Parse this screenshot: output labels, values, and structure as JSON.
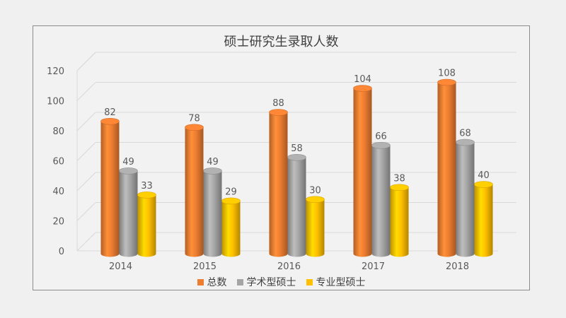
{
  "chart_data": {
    "type": "bar",
    "title": "硕士研究生录取人数",
    "categories": [
      "2014",
      "2015",
      "2016",
      "2017",
      "2018"
    ],
    "series": [
      {
        "name": "总数",
        "values": [
          82,
          78,
          88,
          104,
          108
        ],
        "color": "#ed7d31"
      },
      {
        "name": "学术型硕士",
        "values": [
          49,
          49,
          58,
          66,
          68
        ],
        "color": "#a5a5a5"
      },
      {
        "name": "专业型硕士",
        "values": [
          33,
          29,
          30,
          38,
          40
        ],
        "color": "#ffc000"
      }
    ],
    "ylim": [
      0,
      120
    ],
    "yticks": [
      0,
      20,
      40,
      60,
      80,
      100,
      120
    ],
    "grid": true,
    "legend_position": "bottom",
    "style": "3d-cylinder"
  }
}
